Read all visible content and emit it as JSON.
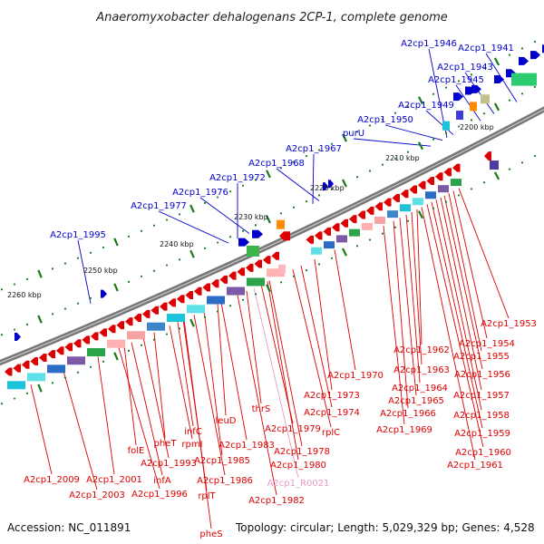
{
  "title": "Anaeromyxobacter dehalogenans 2CP-1, complete genome",
  "footer": {
    "accession": "Accession: NC_011891",
    "topology": "Topology: circular; Length: 5,029,329 bp; Genes: 4,528"
  },
  "colors": {
    "forward": "#0000cc",
    "reverse": "#dd0000",
    "rna": "#e89ac7",
    "backbone": "#777777",
    "tick": "#1a7a1a"
  },
  "scale_labels": [
    "2200 kbp",
    "2210 kbp",
    "2220 kbp",
    "2230 kbp",
    "2240 kbp",
    "2250 kbp",
    "2260 kbp"
  ],
  "forward_genes": [
    "A2cp1_1946",
    "A2cp1_1941",
    "A2cp1_1943",
    "A2cp1_1945",
    "A2cp1_1949",
    "A2cp1_1950",
    "purU",
    "A2cp1_1967",
    "A2cp1_1968",
    "A2cp1_1972",
    "A2cp1_1976",
    "A2cp1_1977",
    "A2cp1_1995"
  ],
  "reverse_genes": [
    "A2cp1_1953",
    "A2cp1_1954",
    "A2cp1_1955",
    "A2cp1_1956",
    "A2cp1_1957",
    "A2cp1_1958",
    "A2cp1_1959",
    "A2cp1_1960",
    "A2cp1_1961",
    "A2cp1_1962",
    "A2cp1_1963",
    "A2cp1_1964",
    "A2cp1_1965",
    "A2cp1_1966",
    "A2cp1_1969",
    "A2cp1_1970",
    "A2cp1_1973",
    "A2cp1_1974",
    "rplC",
    "A2cp1_1978",
    "A2cp1_1979",
    "A2cp1_1980",
    "thrS",
    "A2cp1_R0021",
    "A2cp1_1982",
    "A2cp1_1983",
    "leuD",
    "A2cp1_1985",
    "A2cp1_1986",
    "rplT",
    "infC",
    "rpmI",
    "pheS",
    "pheT",
    "A2cp1_1993",
    "infA",
    "folE",
    "A2cp1_1996",
    "A2cp1_2001",
    "A2cp1_2003",
    "A2cp1_2009"
  ]
}
